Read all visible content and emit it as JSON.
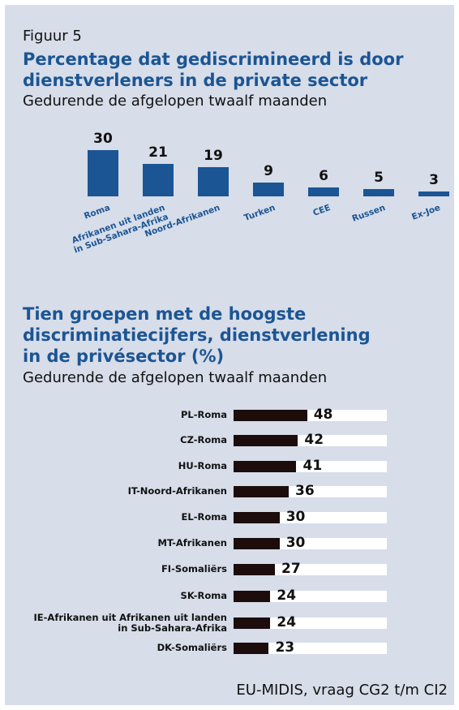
{
  "figure_label": "Figuur 5",
  "chart_data": [
    {
      "type": "bar",
      "title": "Percentage dat gediscrimineerd is door\ndienstverleners in de private sector",
      "subtitle": "Gedurende de afgelopen twaalf maanden",
      "categories": [
        "Roma",
        "Afrikanen uit landen\nin Sub-Sahara-Afrika",
        "Noord-Afrikanen",
        "Turken",
        "CEE",
        "Russen",
        "Ex-Joe"
      ],
      "values": [
        30,
        21,
        19,
        9,
        6,
        5,
        3
      ],
      "color": "#1b5594"
    },
    {
      "type": "hbar",
      "title": "Tien groepen met de hoogste\ndiscriminatiecijfers, dienstverlening\nin de privésector (%)",
      "subtitle": "Gedurende de afgelopen twaalf maanden",
      "categories": [
        "PL-Roma",
        "CZ-Roma",
        "HU-Roma",
        "IT-Noord-Afrikanen",
        "EL-Roma",
        "MT-Afrikanen",
        "FI-Somaliërs",
        "SK-Roma",
        "IE-Afrikanen uit Afrikanen uit landen\nin Sub-Sahara-Afrika",
        "DK-Somaliërs"
      ],
      "values": [
        48,
        42,
        41,
        36,
        30,
        30,
        27,
        24,
        24,
        23
      ],
      "xlim": [
        0,
        100
      ],
      "color": "#1c0c0c"
    }
  ],
  "source": "EU-MIDIS, vraag CG2 t/m CI2"
}
